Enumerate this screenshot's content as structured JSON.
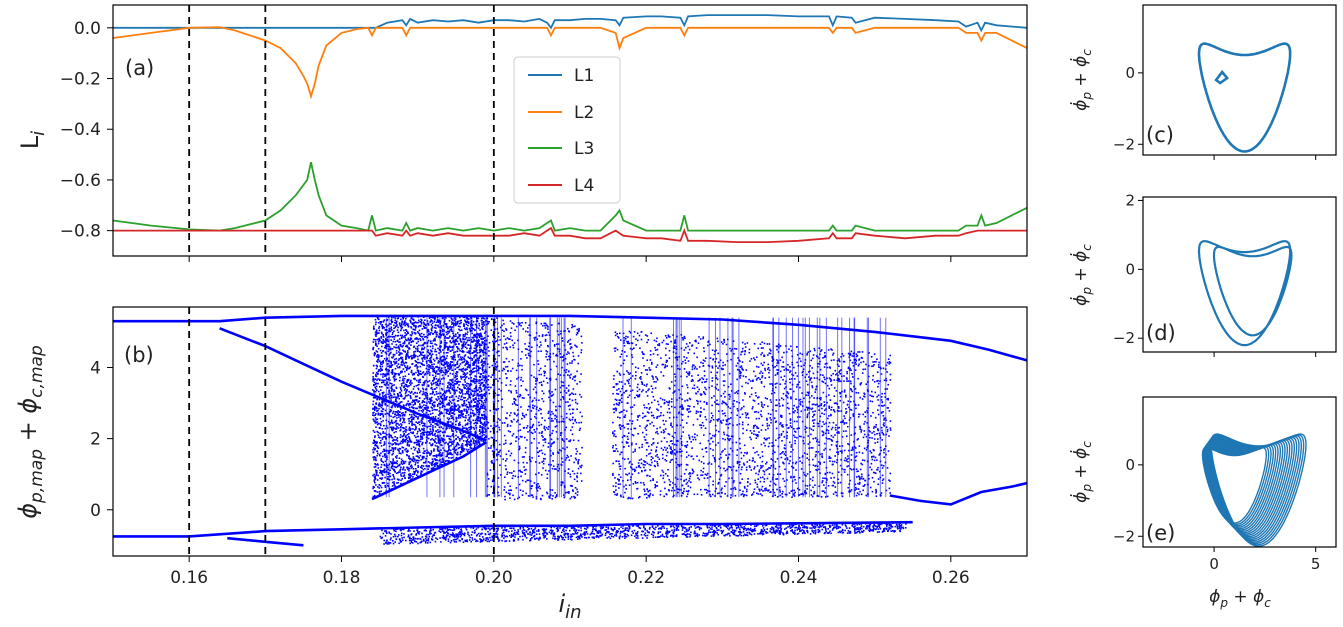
{
  "chart_data": [
    {
      "id": "a",
      "type": "line",
      "panel_label": "(a)",
      "ylabel": "L_i",
      "xlim": [
        0.15,
        0.27
      ],
      "ylim": [
        -0.9,
        0.09
      ],
      "yticks": [
        0.0,
        -0.2,
        -0.4,
        -0.6,
        -0.8
      ],
      "ytick_labels": [
        "0.0",
        "−0.2",
        "−0.4",
        "−0.6",
        "−0.8"
      ],
      "xticks": [
        0.16,
        0.18,
        0.2,
        0.22,
        0.24,
        0.26
      ],
      "vlines": [
        0.16,
        0.17,
        0.2
      ],
      "legend_position": "center",
      "x": [
        0.15,
        0.155,
        0.16,
        0.164,
        0.166,
        0.17,
        0.172,
        0.174,
        0.175,
        0.1755,
        0.176,
        0.1765,
        0.177,
        0.178,
        0.18,
        0.182,
        0.1835,
        0.184,
        0.1845,
        0.186,
        0.188,
        0.1885,
        0.189,
        0.19,
        0.192,
        0.194,
        0.196,
        0.198,
        0.2,
        0.202,
        0.204,
        0.206,
        0.207,
        0.2075,
        0.208,
        0.21,
        0.212,
        0.214,
        0.216,
        0.2165,
        0.217,
        0.22,
        0.222,
        0.2245,
        0.225,
        0.2255,
        0.228,
        0.232,
        0.236,
        0.24,
        0.244,
        0.2445,
        0.245,
        0.247,
        0.2475,
        0.25,
        0.254,
        0.258,
        0.261,
        0.262,
        0.2635,
        0.264,
        0.2645,
        0.266,
        0.27
      ],
      "series": [
        {
          "name": "L1",
          "color": "#1f77b4",
          "values": [
            0,
            0,
            0,
            0,
            0,
            0,
            0,
            0,
            0,
            0,
            0,
            0,
            0,
            0,
            0,
            0,
            0,
            0,
            0,
            0.02,
            0.03,
            0.01,
            0.035,
            0.02,
            0.03,
            0.025,
            0.03,
            0.02,
            0.03,
            0.03,
            0.025,
            0.035,
            0.02,
            0,
            0.03,
            0.03,
            0.035,
            0.035,
            0.03,
            0.01,
            0.04,
            0.045,
            0.045,
            0.04,
            0.01,
            0.045,
            0.05,
            0.05,
            0.05,
            0.045,
            0.045,
            0.01,
            0.045,
            0.04,
            0.02,
            0.04,
            0.035,
            0.03,
            0.025,
            0.005,
            0.02,
            -0.01,
            0.02,
            0.01,
            0
          ]
        },
        {
          "name": "L2",
          "color": "#ff7f0e",
          "values": [
            -0.04,
            -0.02,
            0.0,
            0.003,
            -0.01,
            -0.05,
            -0.08,
            -0.14,
            -0.19,
            -0.22,
            -0.27,
            -0.22,
            -0.15,
            -0.07,
            -0.02,
            -0.005,
            0,
            -0.03,
            0,
            0,
            0,
            -0.03,
            0,
            0,
            0,
            0,
            0,
            0,
            0,
            0,
            0,
            0,
            0,
            -0.03,
            0,
            0,
            0,
            0,
            -0.02,
            -0.08,
            -0.04,
            0,
            0,
            0,
            -0.03,
            0,
            0,
            0,
            0,
            0,
            0,
            -0.02,
            0,
            0,
            -0.02,
            0,
            0,
            0,
            0,
            -0.02,
            -0.02,
            -0.05,
            -0.02,
            -0.02,
            -0.08
          ]
        },
        {
          "name": "L3",
          "color": "#2ca02c",
          "values": [
            -0.76,
            -0.78,
            -0.795,
            -0.8,
            -0.79,
            -0.76,
            -0.72,
            -0.66,
            -0.62,
            -0.6,
            -0.53,
            -0.6,
            -0.66,
            -0.74,
            -0.78,
            -0.79,
            -0.8,
            -0.74,
            -0.8,
            -0.79,
            -0.8,
            -0.77,
            -0.8,
            -0.79,
            -0.8,
            -0.79,
            -0.8,
            -0.79,
            -0.8,
            -0.79,
            -0.8,
            -0.79,
            -0.77,
            -0.76,
            -0.8,
            -0.79,
            -0.8,
            -0.8,
            -0.74,
            -0.72,
            -0.76,
            -0.8,
            -0.8,
            -0.8,
            -0.74,
            -0.8,
            -0.8,
            -0.8,
            -0.8,
            -0.8,
            -0.8,
            -0.78,
            -0.8,
            -0.8,
            -0.78,
            -0.8,
            -0.8,
            -0.8,
            -0.8,
            -0.78,
            -0.78,
            -0.74,
            -0.78,
            -0.77,
            -0.71
          ]
        },
        {
          "name": "L4",
          "color": "#d62728",
          "values": [
            -0.8,
            -0.8,
            -0.8,
            -0.8,
            -0.8,
            -0.8,
            -0.8,
            -0.8,
            -0.8,
            -0.8,
            -0.8,
            -0.8,
            -0.8,
            -0.8,
            -0.8,
            -0.8,
            -0.8,
            -0.8,
            -0.82,
            -0.81,
            -0.82,
            -0.8,
            -0.82,
            -0.81,
            -0.82,
            -0.81,
            -0.82,
            -0.82,
            -0.82,
            -0.82,
            -0.81,
            -0.82,
            -0.8,
            -0.79,
            -0.82,
            -0.82,
            -0.83,
            -0.83,
            -0.8,
            -0.81,
            -0.82,
            -0.83,
            -0.83,
            -0.84,
            -0.8,
            -0.84,
            -0.84,
            -0.845,
            -0.845,
            -0.84,
            -0.83,
            -0.81,
            -0.83,
            -0.83,
            -0.81,
            -0.82,
            -0.83,
            -0.82,
            -0.82,
            -0.81,
            -0.8,
            -0.8,
            -0.8,
            -0.8,
            -0.8
          ]
        }
      ]
    },
    {
      "id": "b",
      "type": "scatter",
      "panel_label": "(b)",
      "xlabel": "i_in",
      "ylabel": "ϕ_{p,map} + ϕ_{c,map}",
      "xlim": [
        0.15,
        0.27
      ],
      "ylim": [
        -1.3,
        5.7
      ],
      "xticks": [
        0.16,
        0.18,
        0.2,
        0.22,
        0.24,
        0.26
      ],
      "xtick_labels": [
        "0.16",
        "0.18",
        "0.20",
        "0.22",
        "0.24",
        "0.26"
      ],
      "yticks": [
        0,
        2,
        4
      ],
      "ytick_labels": [
        "0",
        "2",
        "4"
      ],
      "vlines": [
        0.16,
        0.17,
        0.2
      ],
      "color": "#0000ff",
      "branches": [
        {
          "x": [
            0.15,
            0.16,
            0.164,
            0.17,
            0.18,
            0.19,
            0.2,
            0.21,
            0.22,
            0.23,
            0.24,
            0.25,
            0.26,
            0.265,
            0.27
          ],
          "y": [
            5.3,
            5.3,
            5.3,
            5.4,
            5.45,
            5.45,
            5.45,
            5.45,
            5.4,
            5.35,
            5.2,
            5.0,
            4.75,
            4.5,
            4.2
          ]
        },
        {
          "x": [
            0.164,
            0.17,
            0.175,
            0.18,
            0.185,
            0.19,
            0.195,
            0.199
          ],
          "y": [
            5.1,
            4.6,
            4.1,
            3.6,
            3.15,
            2.7,
            2.3,
            1.95
          ]
        },
        {
          "x": [
            0.184,
            0.188,
            0.192,
            0.196,
            0.199
          ],
          "y": [
            0.3,
            0.7,
            1.1,
            1.5,
            1.9
          ]
        },
        {
          "x": [
            0.252,
            0.256,
            0.26,
            0.264,
            0.268,
            0.27
          ],
          "y": [
            0.4,
            0.25,
            0.15,
            0.5,
            0.65,
            0.75
          ]
        },
        {
          "x": [
            0.15,
            0.16,
            0.17,
            0.18,
            0.19,
            0.2,
            0.21,
            0.22,
            0.23,
            0.24,
            0.25,
            0.255
          ],
          "y": [
            -0.75,
            -0.75,
            -0.6,
            -0.55,
            -0.5,
            -0.45,
            -0.45,
            -0.4,
            -0.4,
            -0.38,
            -0.36,
            -0.35
          ]
        },
        {
          "x": [
            0.165,
            0.17,
            0.175
          ],
          "y": [
            -0.8,
            -0.9,
            -1.0
          ]
        }
      ],
      "chaotic_bands": [
        {
          "x_range": [
            0.184,
            0.199
          ],
          "y_top": [
            5.45,
            5.45
          ],
          "y_bot": [
            0.3,
            1.9
          ]
        },
        {
          "x_range": [
            0.199,
            0.252
          ],
          "y_top": [
            5.45,
            4.4
          ],
          "y_bot": [
            0.3,
            0.4
          ]
        },
        {
          "x_range": [
            0.185,
            0.254
          ],
          "y_top": [
            -0.5,
            -0.35
          ],
          "y_bot": [
            -0.95,
            -0.6
          ]
        }
      ],
      "gaps": [
        [
          0.2115,
          0.2155
        ]
      ]
    },
    {
      "id": "c",
      "type": "line",
      "panel_label": "(c)",
      "ylabel": "ϕ̇_p + ϕ̇_c",
      "xlim": [
        -3.5,
        6
      ],
      "ylim": [
        -2.3,
        1.9
      ],
      "yticks": [
        0,
        -2
      ],
      "ytick_labels": [
        "0",
        "−2"
      ],
      "color": "#1f77b4"
    },
    {
      "id": "d",
      "type": "line",
      "panel_label": "(d)",
      "ylabel": "ϕ̇_p + ϕ̇_c",
      "xlim": [
        -3.5,
        6
      ],
      "ylim": [
        -2.4,
        2.1
      ],
      "yticks": [
        2,
        0,
        -2
      ],
      "ytick_labels": [
        "2",
        "0",
        "−2"
      ],
      "color": "#1f77b4"
    },
    {
      "id": "e",
      "type": "line",
      "panel_label": "(e)",
      "xlabel": "ϕ_p + ϕ_c",
      "ylabel": "ϕ̇_p + ϕ̇_c",
      "xlim": [
        -3.5,
        6
      ],
      "ylim": [
        -2.3,
        1.9
      ],
      "xticks": [
        0,
        5
      ],
      "xtick_labels": [
        "0",
        "5"
      ],
      "yticks": [
        0,
        -2
      ],
      "ytick_labels": [
        "0",
        "−2"
      ],
      "color": "#1f77b4"
    }
  ]
}
